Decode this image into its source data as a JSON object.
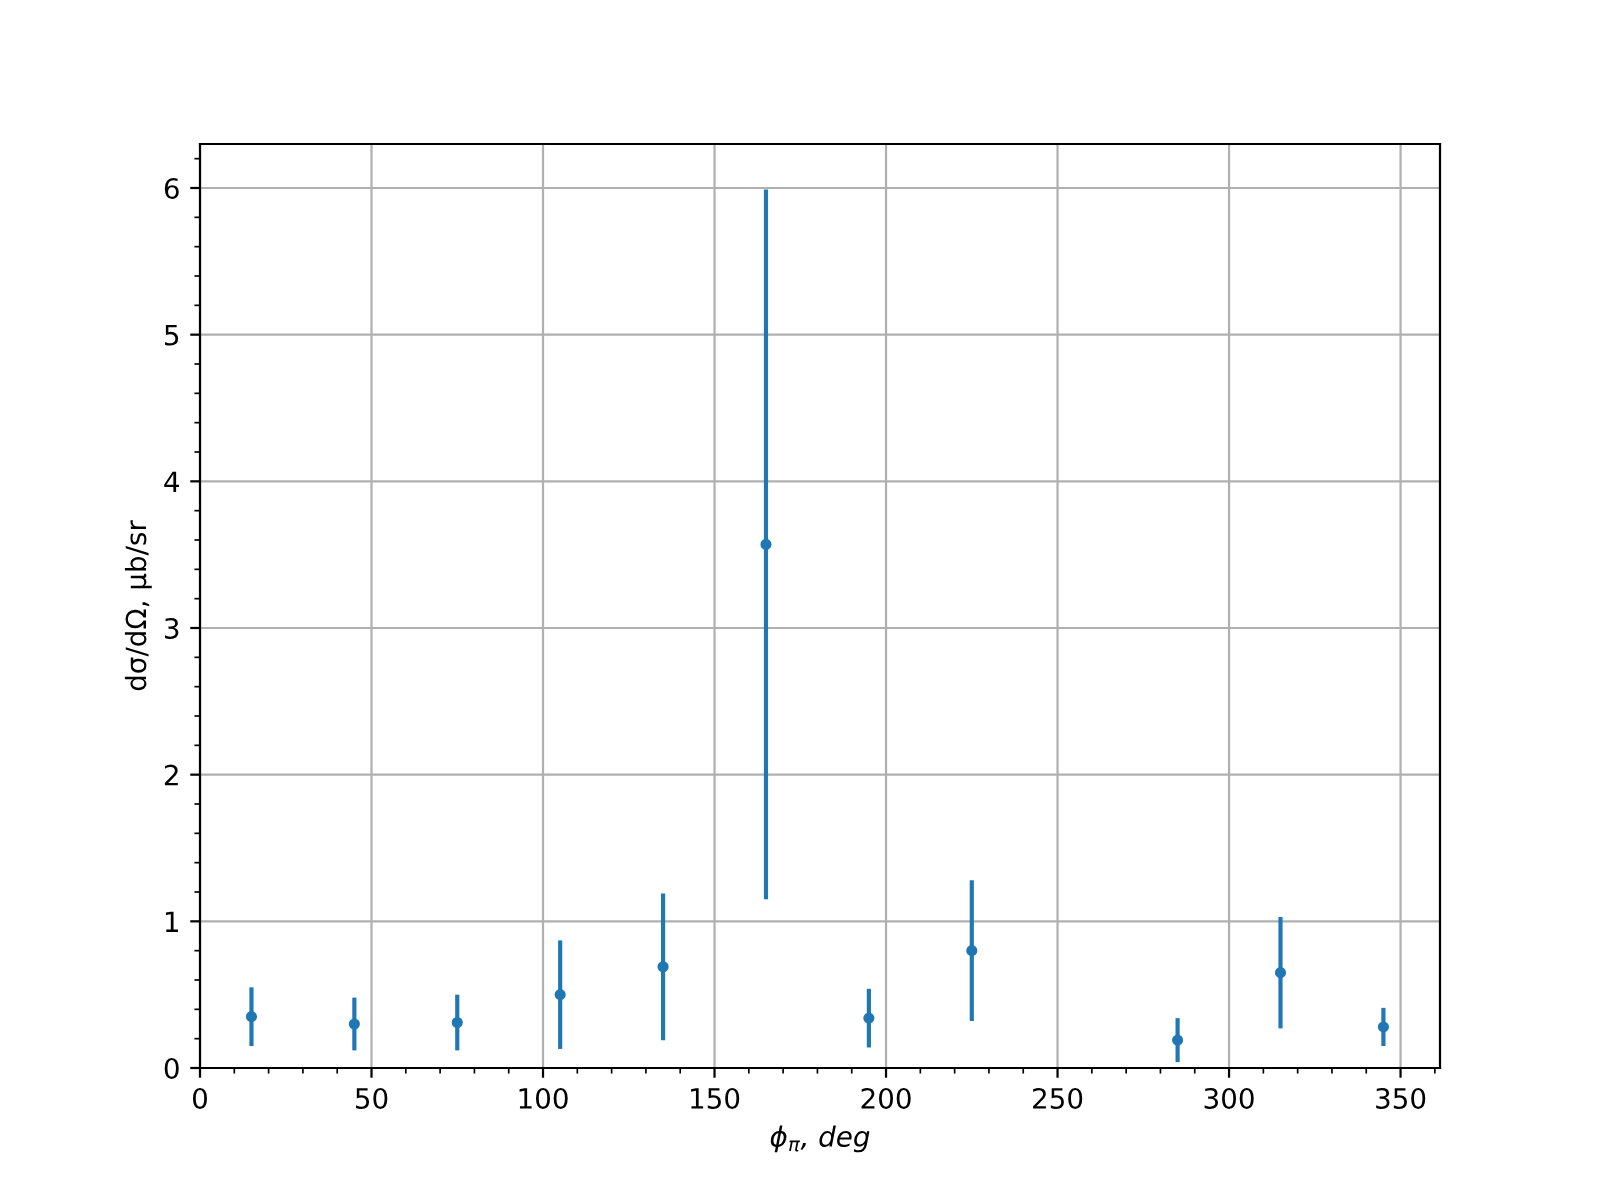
{
  "chart_data": {
    "type": "scatter",
    "xlabel": "ϕ$_{π}$, deg",
    "ylabel": "dσ/dΩ, μb/sr",
    "x": [
      15,
      45,
      75,
      105,
      135,
      165,
      195,
      225,
      285,
      315,
      345
    ],
    "values": [
      0.35,
      0.3,
      0.31,
      0.5,
      0.69,
      3.57,
      0.34,
      0.8,
      0.19,
      0.65,
      0.28
    ],
    "errors": [
      0.2,
      0.18,
      0.19,
      0.37,
      0.5,
      2.42,
      0.2,
      0.48,
      0.15,
      0.38,
      0.13
    ],
    "color": "#1f77b4",
    "marker": "circle",
    "xlim": [
      0,
      361.5
    ],
    "ylim": [
      0,
      6.3
    ],
    "xticks": [
      0,
      50,
      100,
      150,
      200,
      250,
      300,
      350
    ],
    "yticks": [
      0,
      1,
      2,
      3,
      4,
      5,
      6
    ],
    "grid": true
  }
}
